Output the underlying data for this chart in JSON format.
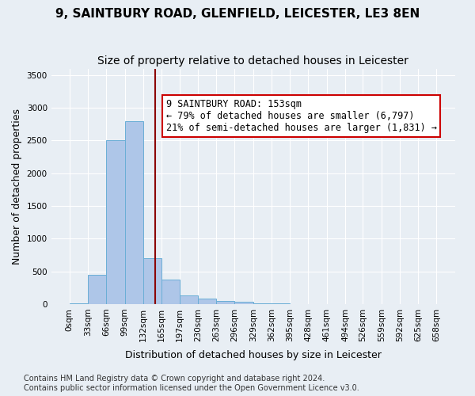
{
  "title": "9, SAINTBURY ROAD, GLENFIELD, LEICESTER, LE3 8EN",
  "subtitle": "Size of property relative to detached houses in Leicester",
  "xlabel": "Distribution of detached houses by size in Leicester",
  "ylabel": "Number of detached properties",
  "bin_edges": [
    0,
    33,
    66,
    99,
    132,
    165,
    197,
    230,
    263,
    296,
    329,
    362,
    395,
    428,
    461,
    494,
    526,
    559,
    592,
    625,
    658
  ],
  "bar_heights": [
    10,
    450,
    2500,
    2800,
    700,
    380,
    130,
    80,
    50,
    30,
    15,
    5,
    2,
    1,
    0,
    0,
    0,
    0,
    0,
    0
  ],
  "bar_color": "#aec6e8",
  "bar_edge_color": "#6aaed6",
  "background_color": "#e8eef4",
  "plot_background": "#e8eef4",
  "grid_color": "#ffffff",
  "marker_value": 153,
  "marker_color": "#8b0000",
  "annotation_text": "9 SAINTBURY ROAD: 153sqm\n← 79% of detached houses are smaller (6,797)\n21% of semi-detached houses are larger (1,831) →",
  "annotation_box_color": "#ffffff",
  "annotation_box_edge": "#cc0000",
  "ylim": [
    0,
    3600
  ],
  "yticks": [
    0,
    500,
    1000,
    1500,
    2000,
    2500,
    3000,
    3500
  ],
  "footer_text": "Contains HM Land Registry data © Crown copyright and database right 2024.\nContains public sector information licensed under the Open Government Licence v3.0.",
  "title_fontsize": 11,
  "subtitle_fontsize": 10,
  "xlabel_fontsize": 9,
  "ylabel_fontsize": 9,
  "tick_fontsize": 7.5,
  "annotation_fontsize": 8.5,
  "footer_fontsize": 7
}
